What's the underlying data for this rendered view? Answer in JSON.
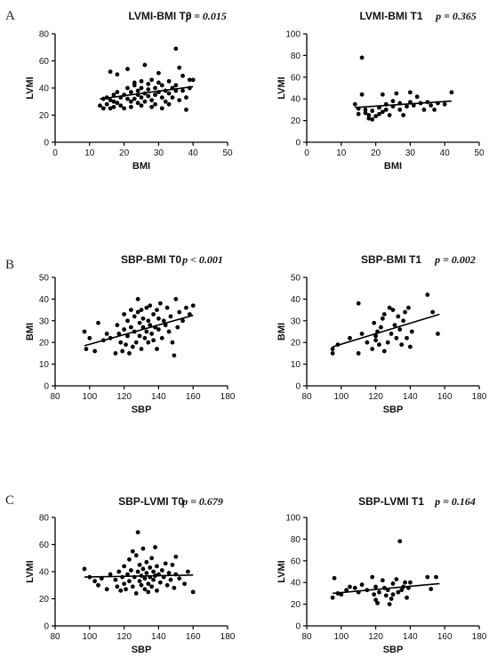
{
  "panel_labels": [
    "A",
    "B",
    "C"
  ],
  "chart_data": [
    {
      "type": "scatter",
      "panel": "A",
      "title": "LVMI-BMI T0",
      "p_value": "p = 0.015",
      "xlabel": "BMI",
      "ylabel": "LVMI",
      "xlim": [
        0,
        50
      ],
      "ylim": [
        0,
        80
      ],
      "xticks": [
        0,
        10,
        20,
        30,
        40,
        50
      ],
      "yticks": [
        0,
        20,
        40,
        60,
        80
      ],
      "fit_line": [
        [
          13,
          32
        ],
        [
          40,
          41
        ]
      ],
      "points": [
        [
          13,
          27
        ],
        [
          14,
          32
        ],
        [
          14,
          25
        ],
        [
          15,
          28
        ],
        [
          15,
          33
        ],
        [
          16,
          31
        ],
        [
          16,
          25
        ],
        [
          16,
          52
        ],
        [
          17,
          35
        ],
        [
          17,
          30
        ],
        [
          17,
          26
        ],
        [
          18,
          37
        ],
        [
          18,
          29
        ],
        [
          18,
          50
        ],
        [
          19,
          33
        ],
        [
          19,
          27
        ],
        [
          20,
          35
        ],
        [
          20,
          25
        ],
        [
          21,
          32
        ],
        [
          21,
          40
        ],
        [
          21,
          54
        ],
        [
          22,
          30
        ],
        [
          22,
          37
        ],
        [
          22,
          26
        ],
        [
          23,
          42
        ],
        [
          23,
          32
        ],
        [
          23,
          44
        ],
        [
          24,
          35
        ],
        [
          24,
          29
        ],
        [
          24,
          38
        ],
        [
          25,
          33
        ],
        [
          25,
          40
        ],
        [
          25,
          27
        ],
        [
          25,
          45
        ],
        [
          26,
          36
        ],
        [
          26,
          57
        ],
        [
          26,
          30
        ],
        [
          27,
          43
        ],
        [
          27,
          34
        ],
        [
          27,
          39
        ],
        [
          28,
          31
        ],
        [
          28,
          26
        ],
        [
          28,
          46
        ],
        [
          29,
          40
        ],
        [
          29,
          35
        ],
        [
          29,
          28
        ],
        [
          30,
          44
        ],
        [
          30,
          37
        ],
        [
          30,
          51
        ],
        [
          31,
          33
        ],
        [
          31,
          42
        ],
        [
          31,
          25
        ],
        [
          32,
          38
        ],
        [
          32,
          30
        ],
        [
          33,
          36
        ],
        [
          33,
          45
        ],
        [
          33,
          28
        ],
        [
          34,
          40
        ],
        [
          34,
          33
        ],
        [
          35,
          69
        ],
        [
          35,
          38
        ],
        [
          35,
          42
        ],
        [
          36,
          55
        ],
        [
          36,
          31
        ],
        [
          37,
          38
        ],
        [
          37,
          49
        ],
        [
          38,
          33
        ],
        [
          38,
          24
        ],
        [
          39,
          46
        ],
        [
          39,
          40
        ],
        [
          40,
          46
        ]
      ]
    },
    {
      "type": "scatter",
      "panel": "A",
      "title": "LVMI-BMI T1",
      "p_value": "p = 0.365",
      "xlabel": "BMI",
      "ylabel": "LVMI",
      "xlim": [
        0,
        50
      ],
      "ylim": [
        0,
        100
      ],
      "xticks": [
        0,
        10,
        20,
        30,
        40,
        50
      ],
      "yticks": [
        0,
        20,
        40,
        60,
        80,
        100
      ],
      "fit_line": [
        [
          14,
          32
        ],
        [
          42,
          38
        ]
      ],
      "points": [
        [
          14,
          35
        ],
        [
          15,
          31
        ],
        [
          15,
          26
        ],
        [
          16,
          78
        ],
        [
          16,
          44
        ],
        [
          17,
          30
        ],
        [
          17,
          27
        ],
        [
          18,
          25
        ],
        [
          18,
          22
        ],
        [
          19,
          29
        ],
        [
          19,
          21
        ],
        [
          20,
          24
        ],
        [
          21,
          32
        ],
        [
          21,
          26
        ],
        [
          22,
          44
        ],
        [
          22,
          28
        ],
        [
          23,
          35
        ],
        [
          23,
          30
        ],
        [
          24,
          25
        ],
        [
          25,
          38
        ],
        [
          25,
          33
        ],
        [
          26,
          45
        ],
        [
          27,
          36
        ],
        [
          27,
          30
        ],
        [
          28,
          25
        ],
        [
          29,
          33
        ],
        [
          30,
          37
        ],
        [
          30,
          46
        ],
        [
          31,
          34
        ],
        [
          32,
          42
        ],
        [
          33,
          36
        ],
        [
          34,
          30
        ],
        [
          35,
          37
        ],
        [
          36,
          34
        ],
        [
          37,
          30
        ],
        [
          38,
          36
        ],
        [
          40,
          35
        ],
        [
          42,
          46
        ]
      ]
    },
    {
      "type": "scatter",
      "panel": "B",
      "title": "SBP-BMI T0",
      "p_value": "p < 0.001",
      "xlabel": "SBP",
      "ylabel": "BMI",
      "xlim": [
        80,
        180
      ],
      "ylim": [
        0,
        50
      ],
      "xticks": [
        80,
        100,
        120,
        140,
        160,
        180
      ],
      "yticks": [
        0,
        10,
        20,
        30,
        40,
        50
      ],
      "fit_line": [
        [
          97,
          18.5
        ],
        [
          160,
          32.5
        ]
      ],
      "points": [
        [
          97,
          25
        ],
        [
          98,
          17
        ],
        [
          100,
          22
        ],
        [
          103,
          16
        ],
        [
          105,
          29
        ],
        [
          108,
          21
        ],
        [
          110,
          24
        ],
        [
          112,
          22
        ],
        [
          115,
          15
        ],
        [
          116,
          28
        ],
        [
          117,
          24
        ],
        [
          118,
          20
        ],
        [
          119,
          16
        ],
        [
          120,
          33
        ],
        [
          120,
          26
        ],
        [
          121,
          19
        ],
        [
          122,
          30
        ],
        [
          122,
          23
        ],
        [
          123,
          15
        ],
        [
          124,
          35
        ],
        [
          124,
          27
        ],
        [
          125,
          18
        ],
        [
          126,
          32
        ],
        [
          126,
          25
        ],
        [
          127,
          20
        ],
        [
          128,
          40
        ],
        [
          128,
          34
        ],
        [
          129,
          29
        ],
        [
          129,
          23
        ],
        [
          130,
          17
        ],
        [
          130,
          35
        ],
        [
          131,
          27
        ],
        [
          131,
          31
        ],
        [
          132,
          22
        ],
        [
          133,
          36
        ],
        [
          133,
          25
        ],
        [
          134,
          20
        ],
        [
          134,
          30
        ],
        [
          135,
          37
        ],
        [
          135,
          28
        ],
        [
          136,
          24
        ],
        [
          137,
          33
        ],
        [
          137,
          21
        ],
        [
          138,
          27
        ],
        [
          139,
          35
        ],
        [
          139,
          17
        ],
        [
          140,
          31
        ],
        [
          140,
          26
        ],
        [
          141,
          38
        ],
        [
          142,
          22
        ],
        [
          143,
          30
        ],
        [
          144,
          28
        ],
        [
          145,
          36
        ],
        [
          146,
          25
        ],
        [
          147,
          32
        ],
        [
          148,
          20
        ],
        [
          149,
          14
        ],
        [
          150,
          40
        ],
        [
          151,
          27
        ],
        [
          152,
          34
        ],
        [
          154,
          30
        ],
        [
          156,
          36
        ],
        [
          158,
          33
        ],
        [
          160,
          37
        ]
      ]
    },
    {
      "type": "scatter",
      "panel": "B",
      "title": "SBP-BMI T1",
      "p_value": "p = 0.002",
      "xlabel": "SBP",
      "ylabel": "BMI",
      "xlim": [
        80,
        180
      ],
      "ylim": [
        0,
        50
      ],
      "xticks": [
        80,
        100,
        120,
        140,
        160,
        180
      ],
      "yticks": [
        0,
        10,
        20,
        30,
        40,
        50
      ],
      "fit_line": [
        [
          95,
          18
        ],
        [
          157,
          33
        ]
      ],
      "points": [
        [
          95,
          15
        ],
        [
          95,
          17
        ],
        [
          98,
          19
        ],
        [
          105,
          22
        ],
        [
          110,
          38
        ],
        [
          110,
          15
        ],
        [
          112,
          24
        ],
        [
          115,
          20
        ],
        [
          118,
          17
        ],
        [
          119,
          29
        ],
        [
          120,
          23
        ],
        [
          120,
          21
        ],
        [
          121,
          25
        ],
        [
          122,
          19
        ],
        [
          123,
          27
        ],
        [
          124,
          31
        ],
        [
          125,
          16
        ],
        [
          125,
          33
        ],
        [
          127,
          20
        ],
        [
          128,
          36
        ],
        [
          129,
          24
        ],
        [
          130,
          35
        ],
        [
          131,
          28
        ],
        [
          132,
          22
        ],
        [
          133,
          32
        ],
        [
          134,
          26
        ],
        [
          135,
          19
        ],
        [
          136,
          30
        ],
        [
          137,
          34
        ],
        [
          138,
          22
        ],
        [
          139,
          36
        ],
        [
          140,
          18
        ],
        [
          141,
          25
        ],
        [
          150,
          42
        ],
        [
          153,
          34
        ],
        [
          156,
          24
        ]
      ]
    },
    {
      "type": "scatter",
      "panel": "C",
      "title": "SBP-LVMI T0",
      "p_value": "p = 0.679",
      "xlabel": "SBP",
      "ylabel": "LVMI",
      "xlim": [
        80,
        180
      ],
      "ylim": [
        0,
        80
      ],
      "xticks": [
        80,
        100,
        120,
        140,
        160,
        180
      ],
      "yticks": [
        0,
        20,
        40,
        60,
        80
      ],
      "fit_line": [
        [
          97,
          36
        ],
        [
          160,
          37.5
        ]
      ],
      "points": [
        [
          97,
          42
        ],
        [
          100,
          36
        ],
        [
          103,
          33
        ],
        [
          105,
          30
        ],
        [
          107,
          35
        ],
        [
          110,
          27
        ],
        [
          112,
          38
        ],
        [
          115,
          34
        ],
        [
          116,
          29
        ],
        [
          117,
          40
        ],
        [
          118,
          26
        ],
        [
          119,
          36
        ],
        [
          120,
          44
        ],
        [
          120,
          31
        ],
        [
          121,
          27
        ],
        [
          122,
          38
        ],
        [
          123,
          49
        ],
        [
          123,
          33
        ],
        [
          124,
          41
        ],
        [
          125,
          29
        ],
        [
          125,
          55
        ],
        [
          126,
          36
        ],
        [
          127,
          52
        ],
        [
          127,
          24
        ],
        [
          128,
          69
        ],
        [
          128,
          40
        ],
        [
          129,
          33
        ],
        [
          129,
          45
        ],
        [
          130,
          30
        ],
        [
          130,
          37
        ],
        [
          131,
          57
        ],
        [
          131,
          42
        ],
        [
          132,
          27
        ],
        [
          132,
          35
        ],
        [
          133,
          47
        ],
        [
          133,
          39
        ],
        [
          134,
          31
        ],
        [
          134,
          25
        ],
        [
          135,
          43
        ],
        [
          135,
          36
        ],
        [
          136,
          50
        ],
        [
          136,
          29
        ],
        [
          137,
          40
        ],
        [
          137,
          34
        ],
        [
          138,
          58
        ],
        [
          138,
          37
        ],
        [
          139,
          26
        ],
        [
          139,
          44
        ],
        [
          140,
          38
        ],
        [
          141,
          32
        ],
        [
          142,
          41
        ],
        [
          143,
          36
        ],
        [
          144,
          46
        ],
        [
          145,
          30
        ],
        [
          146,
          39
        ],
        [
          147,
          34
        ],
        [
          148,
          45
        ],
        [
          149,
          28
        ],
        [
          150,
          51
        ],
        [
          150,
          38
        ],
        [
          152,
          35
        ],
        [
          155,
          31
        ],
        [
          157,
          40
        ],
        [
          160,
          25
        ]
      ]
    },
    {
      "type": "scatter",
      "panel": "C",
      "title": "SBP-LVMI T1",
      "p_value": "p = 0.164",
      "xlabel": "SBP",
      "ylabel": "LVMI",
      "xlim": [
        80,
        180
      ],
      "ylim": [
        0,
        100
      ],
      "xticks": [
        80,
        100,
        120,
        140,
        160,
        180
      ],
      "yticks": [
        0,
        20,
        40,
        60,
        80,
        100
      ],
      "fit_line": [
        [
          95,
          30
        ],
        [
          157,
          39
        ]
      ],
      "points": [
        [
          95,
          26
        ],
        [
          96,
          44
        ],
        [
          98,
          30
        ],
        [
          100,
          29
        ],
        [
          103,
          33
        ],
        [
          105,
          36
        ],
        [
          108,
          35
        ],
        [
          110,
          31
        ],
        [
          112,
          38
        ],
        [
          115,
          33
        ],
        [
          118,
          45
        ],
        [
          119,
          29
        ],
        [
          120,
          24
        ],
        [
          120,
          36
        ],
        [
          121,
          21
        ],
        [
          122,
          31
        ],
        [
          124,
          42
        ],
        [
          125,
          35
        ],
        [
          126,
          28
        ],
        [
          127,
          33
        ],
        [
          128,
          20
        ],
        [
          129,
          25
        ],
        [
          130,
          39
        ],
        [
          130,
          29
        ],
        [
          132,
          43
        ],
        [
          133,
          31
        ],
        [
          134,
          78
        ],
        [
          135,
          33
        ],
        [
          136,
          36
        ],
        [
          137,
          40
        ],
        [
          138,
          26
        ],
        [
          139,
          35
        ],
        [
          140,
          40
        ],
        [
          150,
          45
        ],
        [
          152,
          34
        ],
        [
          155,
          45
        ]
      ]
    }
  ]
}
